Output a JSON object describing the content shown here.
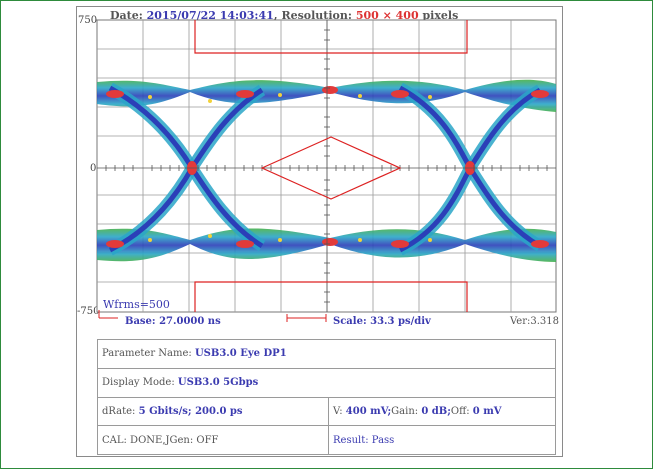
{
  "header": {
    "date_label": "Date:",
    "date_value": "2015/07/22 14:03:41",
    "res_label": ", Resolution:",
    "res_value": "500 × 400",
    "res_unit": "pixels"
  },
  "axis": {
    "top_value": "750",
    "zero_value": "0",
    "bottom_value": "-750"
  },
  "plot": {
    "wfrms_label": "Wfrms=500"
  },
  "footer": {
    "base_label": "Base: 27.0000 ns",
    "scale_label": "Scale: 33.3 ps/div",
    "version": "Ver:3.318"
  },
  "params": {
    "parameter_name_label": "Parameter Name:",
    "parameter_name_value": "USB3.0 Eye DP1",
    "display_mode_label": "Display Mode:",
    "display_mode_value": "USB3.0 5Gbps",
    "drate_label": "dRate:",
    "drate_value": "5 Gbits/s; 200.0 ps",
    "v_label": "V:",
    "v_value": "400 mV;",
    "gain_label": "Gain:",
    "gain_value": "0 dB;",
    "off_label": "Off:",
    "off_value": "0 mV",
    "cal_text": "CAL: DONE,JGen: OFF",
    "result_text": "Result: Pass"
  },
  "colors": {
    "accent": "#3b3bb0",
    "mask": "#dd2222",
    "frame": "#2e8b3c"
  }
}
